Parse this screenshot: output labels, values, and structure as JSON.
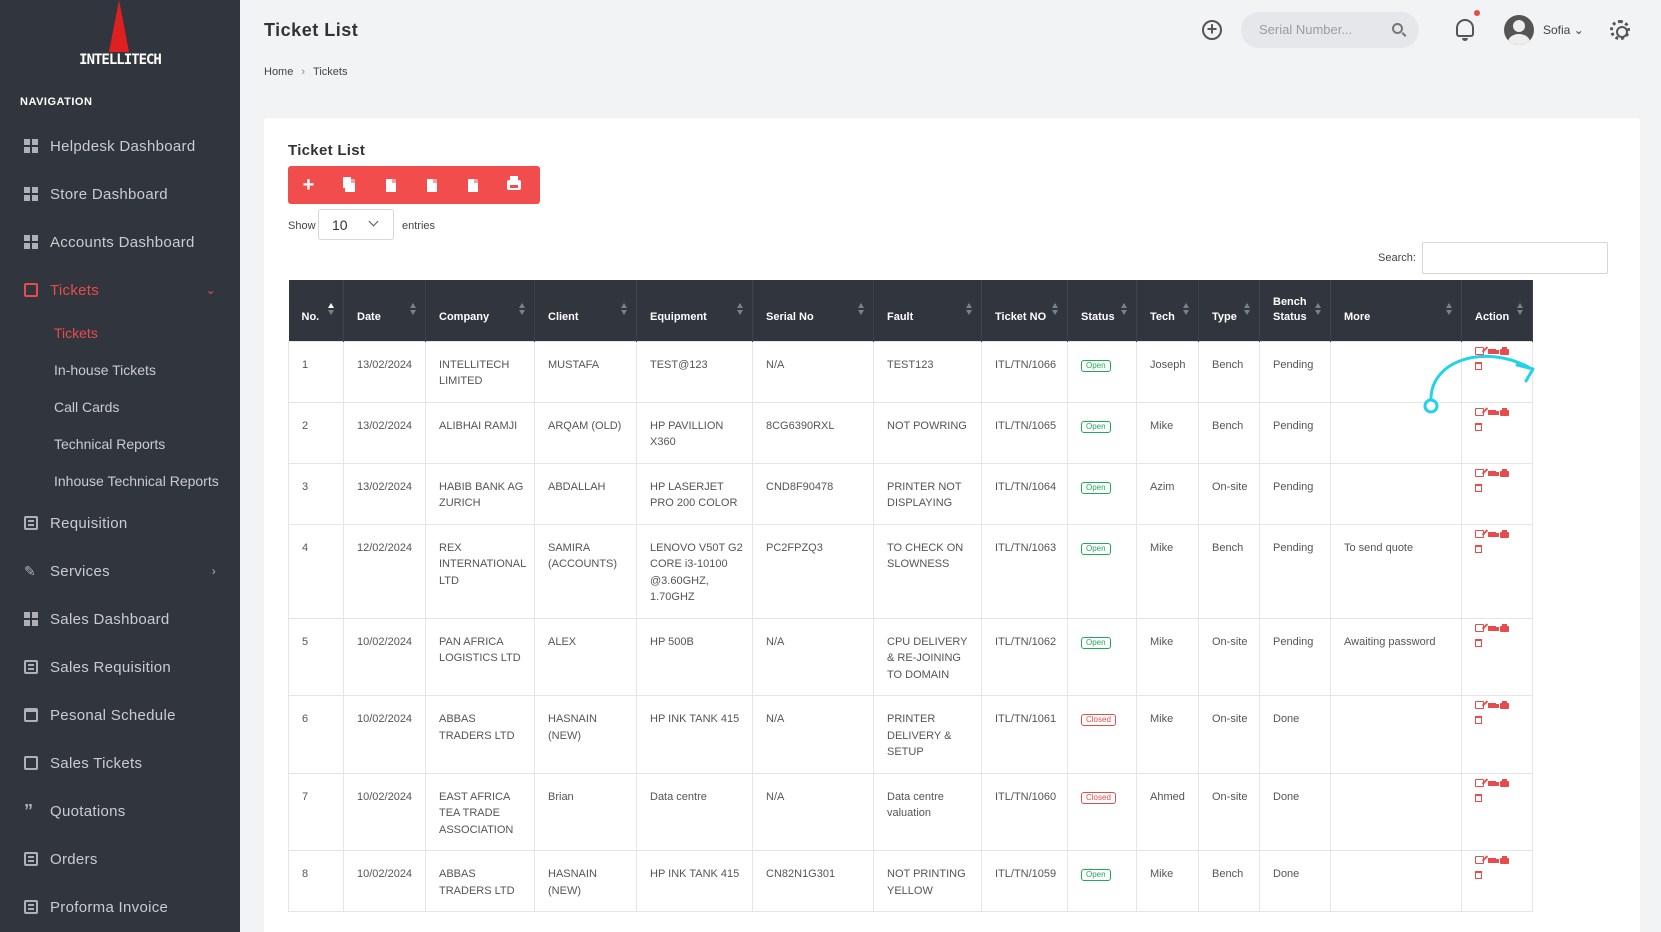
{
  "app": {
    "logo_text": "INTELLITECH"
  },
  "sidebar": {
    "heading": "NAVIGATION",
    "items": [
      {
        "label": "Helpdesk Dashboard",
        "icon": "grid-icon"
      },
      {
        "label": "Store Dashboard",
        "icon": "grid-icon"
      },
      {
        "label": "Accounts Dashboard",
        "icon": "grid-icon"
      },
      {
        "label": "Tickets",
        "icon": "ticket-icon",
        "active": true,
        "expanded": true
      },
      {
        "label": "Requisition",
        "icon": "list-icon"
      },
      {
        "label": "Services",
        "icon": "wrench-icon"
      },
      {
        "label": "Sales Dashboard",
        "icon": "grid-icon"
      },
      {
        "label": "Sales Requisition",
        "icon": "list-icon"
      },
      {
        "label": "Pesonal Schedule",
        "icon": "calendar-icon"
      },
      {
        "label": "Sales Tickets",
        "icon": "ticket-icon"
      },
      {
        "label": "Quotations",
        "icon": "quote-icon"
      },
      {
        "label": "Orders",
        "icon": "list-icon"
      },
      {
        "label": "Proforma Invoice",
        "icon": "list-icon"
      }
    ],
    "sub_items": [
      "Tickets",
      "In-house Tickets",
      "Call Cards",
      "Technical Reports",
      "Inhouse Technical Reports"
    ]
  },
  "header": {
    "title": "Ticket List",
    "breadcrumb": [
      "Home",
      "Tickets"
    ],
    "search_placeholder": "Serial Number...",
    "user_name": "Sofia",
    "user_caret": "⌄"
  },
  "card": {
    "title": "Ticket List",
    "show_label": "Show",
    "show_value": "10",
    "entries_label": "entries",
    "search_label": "Search:"
  },
  "table": {
    "columns": [
      "No.",
      "Date",
      "Company",
      "Client",
      "Equipment",
      "Serial No",
      "Fault",
      "Ticket NO",
      "Status",
      "Tech",
      "Type",
      "Bench Status",
      "More",
      "Action"
    ],
    "rows": [
      {
        "no": "1",
        "date": "13/02/2024",
        "company": "INTELLITECH LIMITED",
        "client": "MUSTAFA",
        "equipment": "TEST@123",
        "serial": "N/A",
        "fault": "TEST123",
        "ticket": "ITL/TN/1066",
        "status": "Open",
        "tech": "Joseph",
        "type": "Bench",
        "bench": "Pending",
        "more": ""
      },
      {
        "no": "2",
        "date": "13/02/2024",
        "company": "ALIBHAI RAMJI",
        "client": "ARQAM (OLD)",
        "equipment": "HP PAVILLION X360",
        "serial": "8CG6390RXL",
        "fault": "NOT POWRING",
        "ticket": "ITL/TN/1065",
        "status": "Open",
        "tech": "Mike",
        "type": "Bench",
        "bench": "Pending",
        "more": ""
      },
      {
        "no": "3",
        "date": "13/02/2024",
        "company": "HABIB BANK AG ZURICH",
        "client": "ABDALLAH",
        "equipment": "HP LASERJET PRO 200 COLOR",
        "serial": "CND8F90478",
        "fault": "PRINTER NOT DISPLAYING",
        "ticket": "ITL/TN/1064",
        "status": "Open",
        "tech": "Azim",
        "type": "On-site",
        "bench": "Pending",
        "more": ""
      },
      {
        "no": "4",
        "date": "12/02/2024",
        "company": "REX INTERNATIONAL LTD",
        "client": "SAMIRA (ACCOUNTS)",
        "equipment": "LENOVO V50T G2 CORE i3-10100 @3.60GHZ, 1.70GHZ",
        "serial": "PC2FPZQ3",
        "fault": "TO CHECK ON SLOWNESS",
        "ticket": "ITL/TN/1063",
        "status": "Open",
        "tech": "Mike",
        "type": "Bench",
        "bench": "Pending",
        "more": "To send quote"
      },
      {
        "no": "5",
        "date": "10/02/2024",
        "company": "PAN AFRICA LOGISTICS LTD",
        "client": "ALEX",
        "equipment": "HP 500B",
        "serial": "N/A",
        "fault": "CPU DELIVERY & RE-JOINING TO DOMAIN",
        "ticket": "ITL/TN/1062",
        "status": "Open",
        "tech": "Mike",
        "type": "On-site",
        "bench": "Pending",
        "more": "Awaiting password"
      },
      {
        "no": "6",
        "date": "10/02/2024",
        "company": "ABBAS TRADERS LTD",
        "client": "HASNAIN (NEW)",
        "equipment": "HP INK TANK 415",
        "serial": "N/A",
        "fault": "PRINTER DELIVERY & SETUP",
        "ticket": "ITL/TN/1061",
        "status": "Closed",
        "tech": "Mike",
        "type": "On-site",
        "bench": "Done",
        "more": ""
      },
      {
        "no": "7",
        "date": "10/02/2024",
        "company": "EAST AFRICA TEA TRADE ASSOCIATION",
        "client": "Brian",
        "equipment": "Data centre",
        "serial": "N/A",
        "fault": "Data centre valuation",
        "ticket": "ITL/TN/1060",
        "status": "Closed",
        "tech": "Ahmed",
        "type": "On-site",
        "bench": "Done",
        "more": ""
      },
      {
        "no": "8",
        "date": "10/02/2024",
        "company": "ABBAS TRADERS LTD",
        "client": "HASNAIN (NEW)",
        "equipment": "HP INK TANK 415",
        "serial": "CN82N1G301",
        "fault": "NOT PRINTING YELLOW",
        "ticket": "ITL/TN/1059",
        "status": "Open",
        "tech": "Mike",
        "type": "Bench",
        "bench": "Done",
        "more": ""
      }
    ]
  },
  "colors": {
    "accent": "#f24d4d",
    "sidebar": "#31353d",
    "open": "#22a85a",
    "closed": "#e74c4c",
    "annotation": "#22d3e6"
  }
}
